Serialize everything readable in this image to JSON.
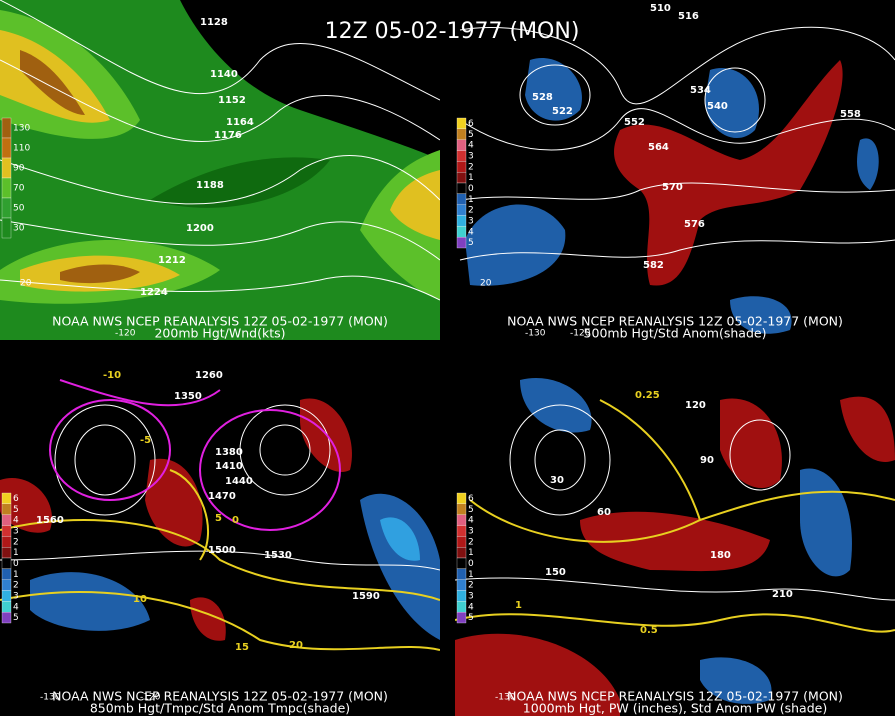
{
  "title": "12Z 05-02-1977 (MON)",
  "panels": [
    {
      "credit": "NOAA NWS NCEP REANALYSIS 12Z 05-02-1977 (MON)",
      "subtitle": "200mb Hgt/Wnd(kts)",
      "legend": [
        "130",
        "110",
        "90",
        "70",
        "50",
        "30"
      ],
      "contour_labels": [
        "1128",
        "1140",
        "1152",
        "1164",
        "1176",
        "1188",
        "1200",
        "1212",
        "1224"
      ],
      "axis_labels": [
        "-120",
        "20"
      ]
    },
    {
      "credit": "NOAA NWS NCEP REANALYSIS 12Z 05-02-1977 (MON)",
      "subtitle": "500mb Hgt/Std Anom(shade)",
      "legend": [
        "6",
        "5",
        "4",
        "3",
        "2",
        "1",
        "0",
        "1",
        "2",
        "3",
        "4",
        "5"
      ],
      "contour_labels": [
        "510",
        "516",
        "522",
        "528",
        "534",
        "540",
        "552",
        "558",
        "564",
        "570",
        "576",
        "582"
      ],
      "axis_labels": [
        "-130",
        "-120",
        "20"
      ]
    },
    {
      "credit": "NOAA NWS NCEP REANALYSIS 12Z 05-02-1977 (MON)",
      "subtitle": "850mb Hgt/Tmpc/Std Anom Tmpc(shade)",
      "legend": [
        "6",
        "5",
        "4",
        "3",
        "2",
        "1",
        "0",
        "1",
        "2",
        "3",
        "4",
        "5"
      ],
      "contour_labels": [
        "1260",
        "1350",
        "1380",
        "1410",
        "1440",
        "1470",
        "1500",
        "1530",
        "1560",
        "1590",
        "-10",
        "-5",
        "0",
        "5",
        "10",
        "15",
        "20"
      ],
      "axis_labels": [
        "-130",
        "-120"
      ]
    },
    {
      "credit": "NOAA NWS NCEP REANALYSIS 12Z 05-02-1977 (MON)",
      "subtitle": "1000mb Hgt, PW (inches), Std Anom PW (shade)",
      "legend": [
        "6",
        "5",
        "4",
        "3",
        "2",
        "1",
        "0",
        "1",
        "2",
        "3",
        "4",
        "5"
      ],
      "contour_labels": [
        "0.25",
        "0.5",
        "1",
        "30",
        "60",
        "90",
        "120",
        "150",
        "180",
        "210"
      ],
      "axis_labels": [
        "-130"
      ]
    }
  ]
}
